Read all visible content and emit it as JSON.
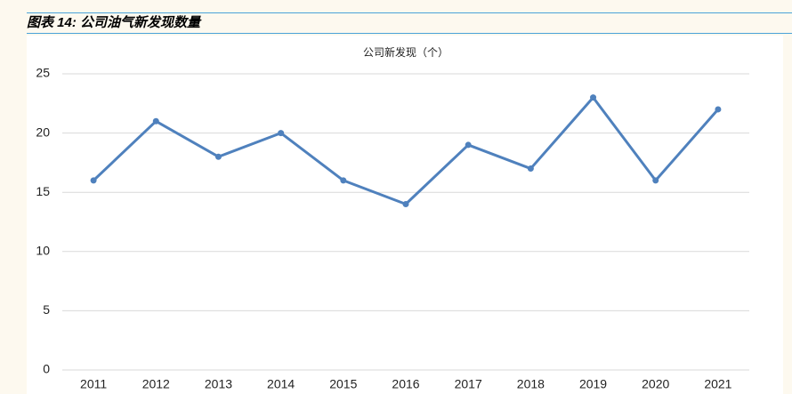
{
  "header": {
    "title": "图表 14:  公司油气新发现数量"
  },
  "chart_data": {
    "type": "line",
    "title": "公司新发现（个）",
    "categories": [
      "2011",
      "2012",
      "2013",
      "2014",
      "2015",
      "2016",
      "2017",
      "2018",
      "2019",
      "2020",
      "2021"
    ],
    "series": [
      {
        "name": "公司新发现（个）",
        "color": "#4f81bd",
        "values": [
          16,
          21,
          18,
          20,
          16,
          14,
          19,
          17,
          23,
          16,
          22
        ]
      }
    ],
    "ylim": [
      0,
      25
    ],
    "yticks": [
      0,
      5,
      10,
      15,
      20,
      25
    ],
    "grid": true
  }
}
